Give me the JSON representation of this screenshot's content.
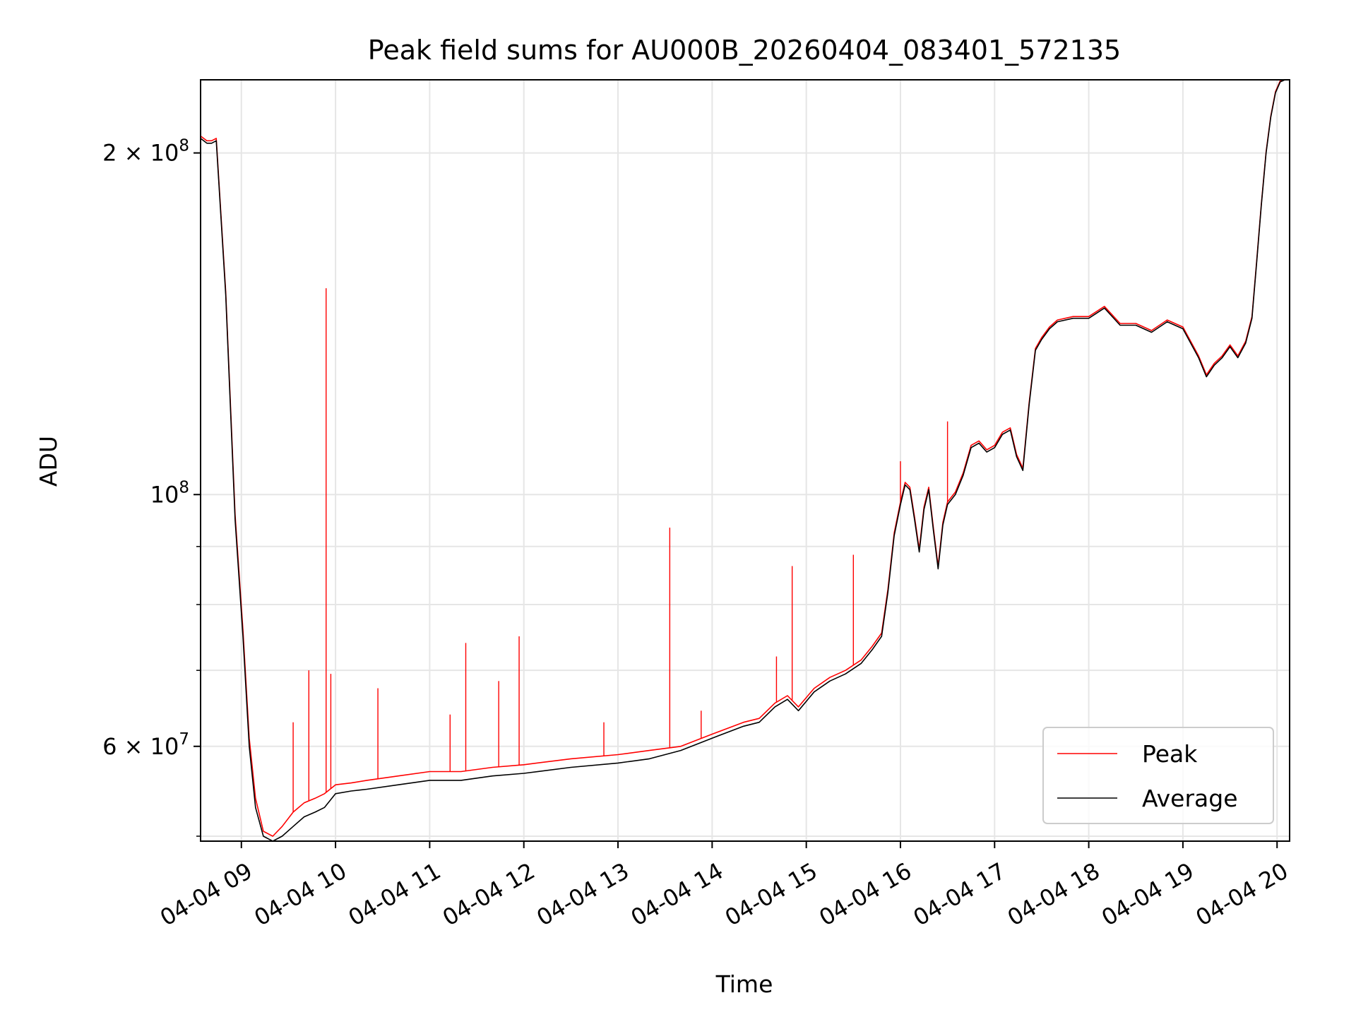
{
  "chart_data": {
    "type": "line",
    "title": "Peak field sums for AU000B_20260404_083401_572135",
    "xlabel": "Time",
    "ylabel": "ADU",
    "yscale": "log",
    "xlim": [
      "2026-04-04 08:34",
      "2026-04-04 20:08"
    ],
    "ylim": [
      49500000,
      232000000
    ],
    "grid": true,
    "legend_position": "lower-right",
    "x_ticks": [
      "2026-04-04 09:00",
      "2026-04-04 10:00",
      "2026-04-04 11:00",
      "2026-04-04 12:00",
      "2026-04-04 13:00",
      "2026-04-04 14:00",
      "2026-04-04 15:00",
      "2026-04-04 16:00",
      "2026-04-04 17:00",
      "2026-04-04 18:00",
      "2026-04-04 19:00",
      "2026-04-04 20:00"
    ],
    "x_tick_labels": [
      "04-04 09",
      "04-04 10",
      "04-04 11",
      "04-04 12",
      "04-04 13",
      "04-04 14",
      "04-04 15",
      "04-04 16",
      "04-04 17",
      "04-04 18",
      "04-04 19",
      "04-04 20"
    ],
    "y_ticks": [
      {
        "value": 60000000,
        "label_base": "6 × 10",
        "label_exp": "7"
      },
      {
        "value": 100000000,
        "label_base": "10",
        "label_exp": "8"
      },
      {
        "value": 200000000,
        "label_base": "2 × 10",
        "label_exp": "8"
      }
    ],
    "y_minor_ticks": [
      50000000,
      70000000,
      80000000,
      90000000
    ],
    "series": [
      {
        "name": "Average",
        "color": "#000000",
        "x": [
          "2026-04-04 08:34",
          "2026-04-04 08:38",
          "2026-04-04 08:41",
          "2026-04-04 08:44",
          "2026-04-04 08:50",
          "2026-04-04 08:56",
          "2026-04-04 09:01",
          "2026-04-04 09:05",
          "2026-04-04 09:09",
          "2026-04-04 09:14",
          "2026-04-04 09:20",
          "2026-04-04 09:26",
          "2026-04-04 09:33",
          "2026-04-04 09:40",
          "2026-04-04 09:47",
          "2026-04-04 09:53",
          "2026-04-04 10:00",
          "2026-04-04 10:10",
          "2026-04-04 10:20",
          "2026-04-04 10:40",
          "2026-04-04 11:00",
          "2026-04-04 11:20",
          "2026-04-04 11:40",
          "2026-04-04 12:00",
          "2026-04-04 12:30",
          "2026-04-04 13:00",
          "2026-04-04 13:20",
          "2026-04-04 13:40",
          "2026-04-04 14:00",
          "2026-04-04 14:20",
          "2026-04-04 14:30",
          "2026-04-04 14:40",
          "2026-04-04 14:48",
          "2026-04-04 14:55",
          "2026-04-04 15:05",
          "2026-04-04 15:15",
          "2026-04-04 15:25",
          "2026-04-04 15:35",
          "2026-04-04 15:42",
          "2026-04-04 15:48",
          "2026-04-04 15:52",
          "2026-04-04 15:56",
          "2026-04-04 16:00",
          "2026-04-04 16:03",
          "2026-04-04 16:06",
          "2026-04-04 16:09",
          "2026-04-04 16:12",
          "2026-04-04 16:15",
          "2026-04-04 16:18",
          "2026-04-04 16:21",
          "2026-04-04 16:24",
          "2026-04-04 16:27",
          "2026-04-04 16:30",
          "2026-04-04 16:35",
          "2026-04-04 16:40",
          "2026-04-04 16:45",
          "2026-04-04 16:50",
          "2026-04-04 16:55",
          "2026-04-04 17:00",
          "2026-04-04 17:05",
          "2026-04-04 17:10",
          "2026-04-04 17:14",
          "2026-04-04 17:18",
          "2026-04-04 17:22",
          "2026-04-04 17:26",
          "2026-04-04 17:30",
          "2026-04-04 17:35",
          "2026-04-04 17:40",
          "2026-04-04 17:50",
          "2026-04-04 18:00",
          "2026-04-04 18:10",
          "2026-04-04 18:20",
          "2026-04-04 18:30",
          "2026-04-04 18:40",
          "2026-04-04 18:50",
          "2026-04-04 19:00",
          "2026-04-04 19:10",
          "2026-04-04 19:15",
          "2026-04-04 19:20",
          "2026-04-04 19:25",
          "2026-04-04 19:30",
          "2026-04-04 19:35",
          "2026-04-04 19:40",
          "2026-04-04 19:44",
          "2026-04-04 19:47",
          "2026-04-04 19:50",
          "2026-04-04 19:53",
          "2026-04-04 19:56",
          "2026-04-04 19:59",
          "2026-04-04 20:02",
          "2026-04-04 20:05",
          "2026-04-04 20:08"
        ],
        "values": [
          206000000,
          204000000,
          204000000,
          205000000,
          150000000,
          95000000,
          75000000,
          60000000,
          53000000,
          50000000,
          49500000,
          50000000,
          51000000,
          52000000,
          52500000,
          53000000,
          54500000,
          54800000,
          55000000,
          55500000,
          56000000,
          56000000,
          56500000,
          56800000,
          57500000,
          58000000,
          58500000,
          59500000,
          61000000,
          62500000,
          63000000,
          65000000,
          66000000,
          64500000,
          67000000,
          68500000,
          69500000,
          71000000,
          73000000,
          75000000,
          82000000,
          92000000,
          98000000,
          102000000,
          101000000,
          95000000,
          89000000,
          97000000,
          101000000,
          93000000,
          86000000,
          94000000,
          98000000,
          100000000,
          104000000,
          110000000,
          111000000,
          109000000,
          110000000,
          113000000,
          114000000,
          108000000,
          105000000,
          120000000,
          134000000,
          137000000,
          140000000,
          142000000,
          143000000,
          143000000,
          146000000,
          141000000,
          141000000,
          139000000,
          142000000,
          140000000,
          132000000,
          127000000,
          130000000,
          132000000,
          135000000,
          132000000,
          136000000,
          143000000,
          160000000,
          180000000,
          200000000,
          215000000,
          226000000,
          231000000,
          232000000,
          232000000
        ]
      },
      {
        "name": "Peak",
        "color": "#ff0000",
        "x": [
          "2026-04-04 08:34",
          "2026-04-04 08:38",
          "2026-04-04 08:41",
          "2026-04-04 08:44",
          "2026-04-04 08:50",
          "2026-04-04 08:56",
          "2026-04-04 09:01",
          "2026-04-04 09:05",
          "2026-04-04 09:09",
          "2026-04-04 09:14",
          "2026-04-04 09:20",
          "2026-04-04 09:26",
          "2026-04-04 09:33",
          "2026-04-04 09:40",
          "2026-04-04 09:47",
          "2026-04-04 09:53",
          "2026-04-04 10:00",
          "2026-04-04 10:10",
          "2026-04-04 10:20",
          "2026-04-04 10:40",
          "2026-04-04 11:00",
          "2026-04-04 11:20",
          "2026-04-04 11:40",
          "2026-04-04 12:00",
          "2026-04-04 12:30",
          "2026-04-04 13:00",
          "2026-04-04 13:20",
          "2026-04-04 13:40",
          "2026-04-04 14:00",
          "2026-04-04 14:20",
          "2026-04-04 14:30",
          "2026-04-04 14:40",
          "2026-04-04 14:48",
          "2026-04-04 14:55",
          "2026-04-04 15:05",
          "2026-04-04 15:15",
          "2026-04-04 15:25",
          "2026-04-04 15:35",
          "2026-04-04 15:42",
          "2026-04-04 15:48",
          "2026-04-04 15:52",
          "2026-04-04 15:56",
          "2026-04-04 16:00",
          "2026-04-04 16:03",
          "2026-04-04 16:06",
          "2026-04-04 16:09",
          "2026-04-04 16:12",
          "2026-04-04 16:15",
          "2026-04-04 16:18",
          "2026-04-04 16:21",
          "2026-04-04 16:24",
          "2026-04-04 16:27",
          "2026-04-04 16:30",
          "2026-04-04 16:35",
          "2026-04-04 16:40",
          "2026-04-04 16:45",
          "2026-04-04 16:50",
          "2026-04-04 16:55",
          "2026-04-04 17:00",
          "2026-04-04 17:05",
          "2026-04-04 17:10",
          "2026-04-04 17:14",
          "2026-04-04 17:18",
          "2026-04-04 17:22",
          "2026-04-04 17:26",
          "2026-04-04 17:30",
          "2026-04-04 17:35",
          "2026-04-04 17:40",
          "2026-04-04 17:50",
          "2026-04-04 18:00",
          "2026-04-04 18:10",
          "2026-04-04 18:20",
          "2026-04-04 18:30",
          "2026-04-04 18:40",
          "2026-04-04 18:50",
          "2026-04-04 19:00",
          "2026-04-04 19:10",
          "2026-04-04 19:15",
          "2026-04-04 19:20",
          "2026-04-04 19:25",
          "2026-04-04 19:30",
          "2026-04-04 19:35",
          "2026-04-04 19:40",
          "2026-04-04 19:44",
          "2026-04-04 19:47",
          "2026-04-04 19:50",
          "2026-04-04 19:53",
          "2026-04-04 19:56",
          "2026-04-04 19:59",
          "2026-04-04 20:02",
          "2026-04-04 20:05",
          "2026-04-04 20:08"
        ],
        "values": [
          207000000,
          205000000,
          205000000,
          206000000,
          151000000,
          96000000,
          76000000,
          61000000,
          54000000,
          50500000,
          50000000,
          51000000,
          52500000,
          53500000,
          54000000,
          54500000,
          55500000,
          55700000,
          56000000,
          56500000,
          57000000,
          57000000,
          57500000,
          57800000,
          58500000,
          59000000,
          59500000,
          60000000,
          61500000,
          63000000,
          63500000,
          65500000,
          66500000,
          65000000,
          67500000,
          69000000,
          70000000,
          71500000,
          73500000,
          75500000,
          82500000,
          92500000,
          98500000,
          102500000,
          101500000,
          95500000,
          89500000,
          97500000,
          101500000,
          93500000,
          86500000,
          94500000,
          98500000,
          100500000,
          104500000,
          110500000,
          111500000,
          109500000,
          110500000,
          113500000,
          114500000,
          108500000,
          105500000,
          120500000,
          134500000,
          137500000,
          140500000,
          142500000,
          143500000,
          143500000,
          146500000,
          141500000,
          141500000,
          139500000,
          142500000,
          140500000,
          132500000,
          127500000,
          130500000,
          132500000,
          135500000,
          132500000,
          136500000,
          143500000,
          160500000,
          180500000,
          200500000,
          215500000,
          226500000,
          231500000,
          232000000,
          232000000
        ],
        "spikes": [
          {
            "x": "2026-04-04 09:54",
            "value": 152000000
          },
          {
            "x": "2026-04-04 09:43",
            "value": 70000000
          },
          {
            "x": "2026-04-04 09:57",
            "value": 69500000
          },
          {
            "x": "2026-04-04 09:33",
            "value": 63000000
          },
          {
            "x": "2026-04-04 10:27",
            "value": 67500000
          },
          {
            "x": "2026-04-04 11:13",
            "value": 64000000
          },
          {
            "x": "2026-04-04 11:23",
            "value": 74000000
          },
          {
            "x": "2026-04-04 11:44",
            "value": 68500000
          },
          {
            "x": "2026-04-04 11:57",
            "value": 75000000
          },
          {
            "x": "2026-04-04 12:51",
            "value": 63000000
          },
          {
            "x": "2026-04-04 13:33",
            "value": 93500000
          },
          {
            "x": "2026-04-04 13:53",
            "value": 64500000
          },
          {
            "x": "2026-04-04 14:41",
            "value": 72000000
          },
          {
            "x": "2026-04-04 14:51",
            "value": 86500000
          },
          {
            "x": "2026-04-04 15:30",
            "value": 88500000
          },
          {
            "x": "2026-04-04 16:00",
            "value": 107000000
          },
          {
            "x": "2026-04-04 16:30",
            "value": 116000000
          }
        ]
      }
    ]
  }
}
